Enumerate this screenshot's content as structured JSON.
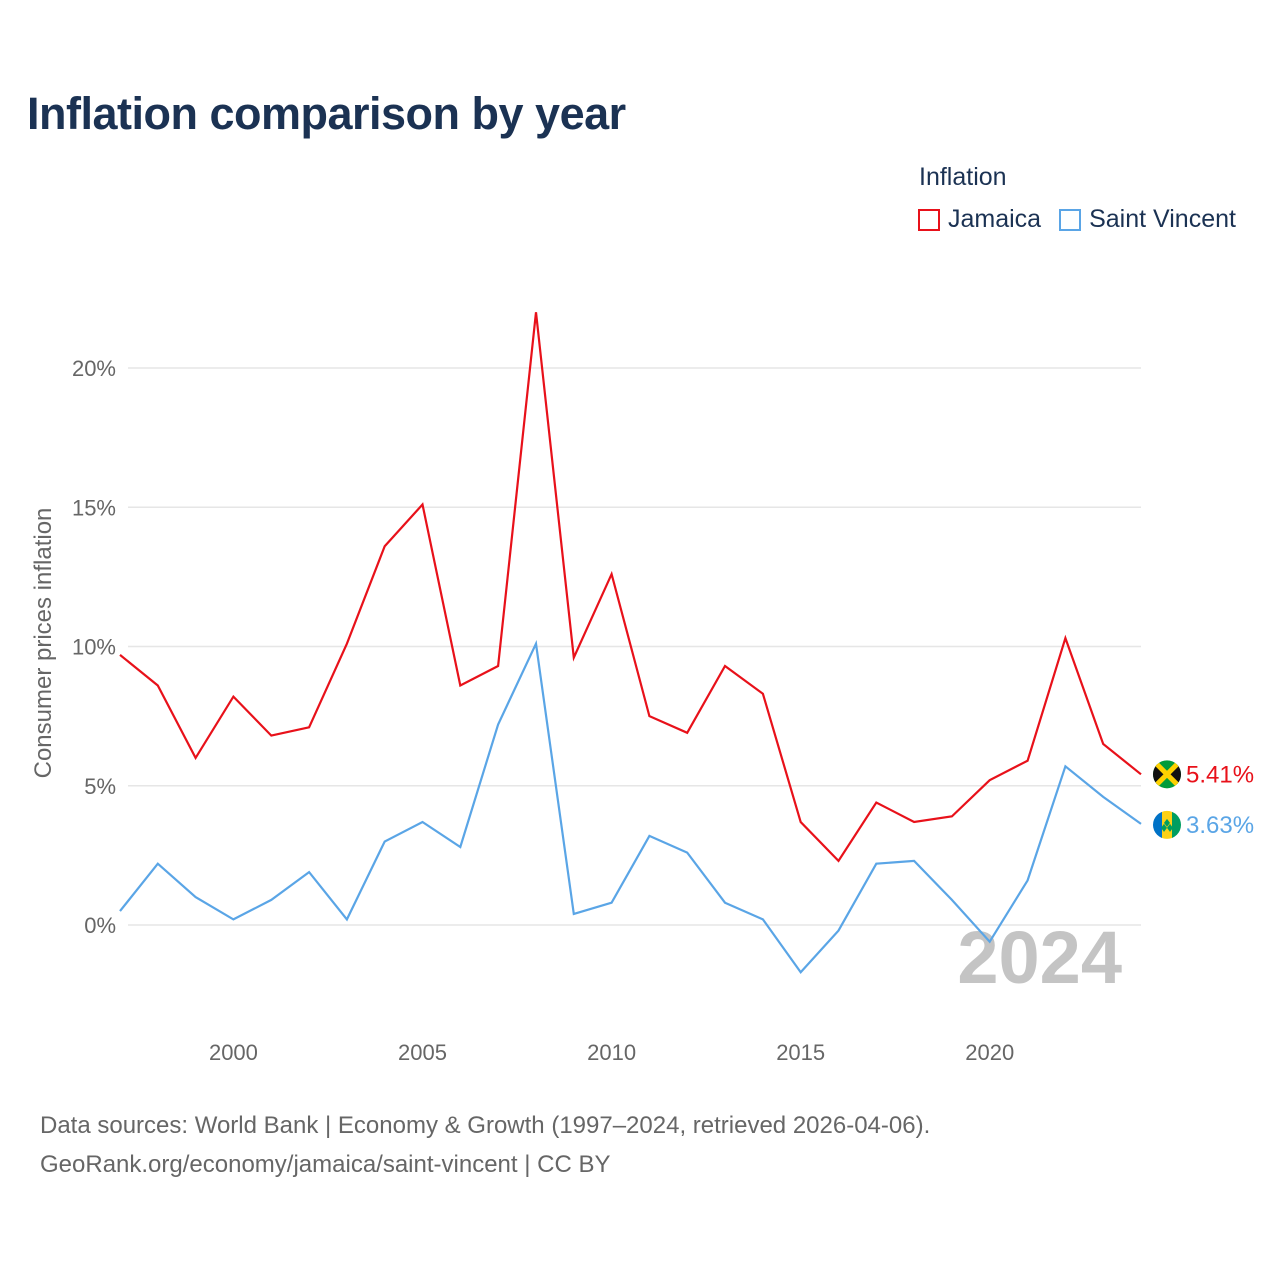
{
  "title": "Inflation comparison by year",
  "legend": {
    "title": "Inflation",
    "items": [
      {
        "label": "Jamaica",
        "color": "#e8111a"
      },
      {
        "label": "Saint Vincent",
        "color": "#5aa5e6"
      }
    ]
  },
  "chart_data": {
    "type": "line",
    "title": "Inflation comparison by year",
    "ylabel": "Consumer prices inflation",
    "xlabel": "",
    "xlim": [
      1997,
      2024
    ],
    "ylim": [
      -3,
      22
    ],
    "yticks": [
      0,
      5,
      10,
      15,
      20
    ],
    "ytick_labels": [
      "0%",
      "5%",
      "10%",
      "15%",
      "20%"
    ],
    "xticks": [
      2000,
      2005,
      2010,
      2015,
      2020
    ],
    "xtick_labels": [
      "2000",
      "2005",
      "2010",
      "2015",
      "2020"
    ],
    "x": [
      1997,
      1998,
      1999,
      2000,
      2001,
      2002,
      2003,
      2004,
      2005,
      2006,
      2007,
      2008,
      2009,
      2010,
      2011,
      2012,
      2013,
      2014,
      2015,
      2016,
      2017,
      2018,
      2019,
      2020,
      2021,
      2022,
      2023,
      2024
    ],
    "series": [
      {
        "name": "Jamaica",
        "color": "#e8111a",
        "values": [
          9.7,
          8.6,
          6.0,
          8.2,
          6.8,
          7.1,
          10.1,
          13.6,
          15.1,
          8.6,
          9.3,
          22.0,
          9.6,
          12.6,
          7.5,
          6.9,
          9.3,
          8.3,
          3.7,
          2.3,
          4.4,
          3.7,
          3.9,
          5.2,
          5.9,
          10.3,
          6.5,
          5.41
        ],
        "end_label": "5.41%"
      },
      {
        "name": "Saint Vincent",
        "color": "#5aa5e6",
        "values": [
          0.5,
          2.2,
          1.0,
          0.2,
          0.9,
          1.9,
          0.2,
          3.0,
          3.7,
          2.8,
          7.2,
          10.1,
          0.4,
          0.8,
          3.2,
          2.6,
          0.8,
          0.2,
          -1.7,
          -0.2,
          2.2,
          2.3,
          0.9,
          -0.6,
          1.6,
          5.7,
          4.6,
          3.63
        ],
        "end_label": "3.63%"
      }
    ],
    "year_watermark": "2024",
    "grid": true
  },
  "source": {
    "line1": "Data sources: World Bank | Economy & Growth (1997–2024, retrieved 2026-04-06).",
    "line2": "GeoRank.org/economy/jamaica/saint-vincent | CC BY"
  }
}
